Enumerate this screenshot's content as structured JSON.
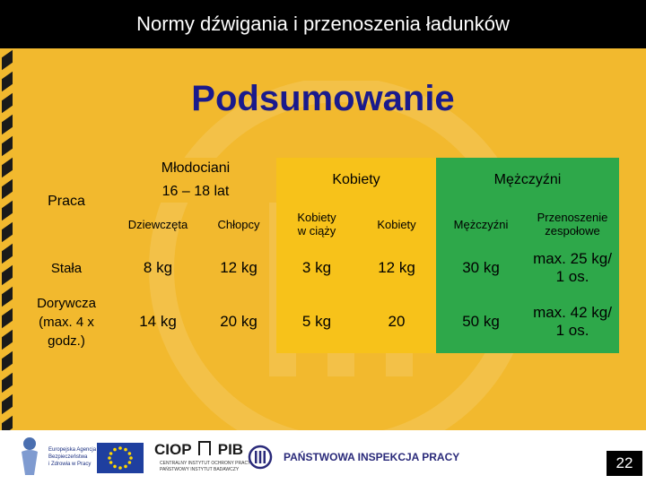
{
  "header": {
    "title": "Normy dźwigania i przenoszenia ładunków"
  },
  "slide": {
    "heading": "Podsumowanie",
    "page_number": "22"
  },
  "table": {
    "col_praca": "Praca",
    "group_mlodociani_line1": "Młodociani",
    "group_mlodociani_line2": "16 – 18 lat",
    "group_kobiety": "Kobiety",
    "group_mezczyzni": "Mężczyźni",
    "sub": {
      "dziewczeta": "Dziewczęta",
      "chlopcy": "Chłopcy",
      "kobiety_ciaza_line1": "Kobiety",
      "kobiety_ciaza_line2": "w ciąży",
      "kobiety": "Kobiety",
      "mezczyzni": "Mężczyźni",
      "przenoszenie_line1": "Przenoszenie",
      "przenoszenie_line2": "zespołowe"
    },
    "rows": [
      {
        "label_line1": "Stała",
        "label_line2": "",
        "label_line3": "",
        "dziewczeta": "8 kg",
        "chlopcy": "12 kg",
        "kobiety_ciaza": "3 kg",
        "kobiety": "12 kg",
        "mezczyzni": "30 kg",
        "zespolowe_line1": "max. 25 kg/",
        "zespolowe_line2": "1 os."
      },
      {
        "label_line1": "Dorywcza",
        "label_line2": "(max. 4 x",
        "label_line3": "godz.)",
        "dziewczeta": "14 kg",
        "chlopcy": "20 kg",
        "kobiety_ciaza": "5 kg",
        "kobiety": "20",
        "mezczyzni": "50 kg",
        "zespolowe_line1": "max. 42 kg/",
        "zespolowe_line2": "1 os."
      }
    ]
  },
  "footer": {
    "logo_agency_line1": "Europejska Agencja",
    "logo_agency_line2": "Bezpieczeństwa",
    "logo_agency_line3": "i Zdrowia w Pracy",
    "logo_ciop": "CIOP",
    "logo_pib": "PIB",
    "logo_ciop_caption_line1": "CENTRALNY INSTYTUT OCHRONY PRACY",
    "logo_ciop_caption_line2": "PAŃSTWOWY INSTYTUT BADAWCZY",
    "logo_pip_text": "PAŃSTWOWA INSPEKCJA PRACY"
  },
  "colors": {
    "background": "#f2b92e",
    "green": "#2ea84a",
    "yellow": "#f7c21a",
    "title": "#1a1a8c"
  }
}
